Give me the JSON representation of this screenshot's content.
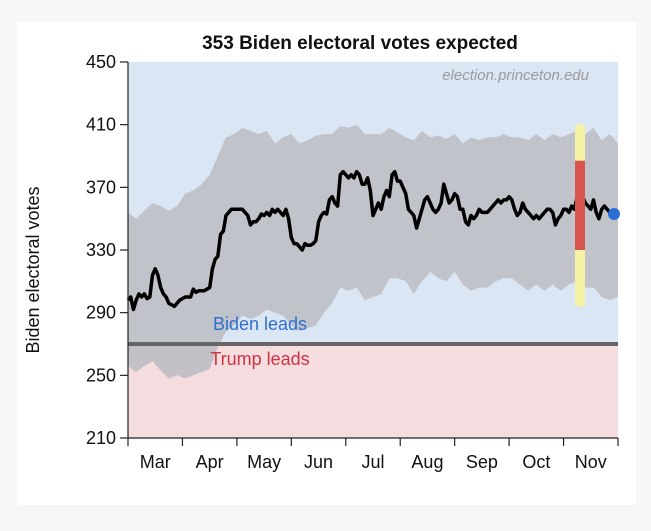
{
  "chart_data": {
    "type": "line",
    "title": "353 Biden electoral votes expected",
    "ylabel": "Biden electoral votes",
    "xlabel": "",
    "watermark": "election.princeton.edu",
    "ylim": [
      210,
      450
    ],
    "yticks": [
      210,
      250,
      290,
      330,
      370,
      410,
      450
    ],
    "months": [
      "Mar",
      "Apr",
      "May",
      "Jun",
      "Jul",
      "Aug",
      "Sep",
      "Oct",
      "Nov"
    ],
    "xlim_days": [
      0,
      238
    ],
    "threshold": 270,
    "regions": {
      "biden_label": "Biden leads",
      "trump_label": "Trump leads",
      "biden_color": "#dbe6f5",
      "trump_color": "#f5dcdf",
      "biden_text_color": "#2f6fcf",
      "trump_text_color": "#cf3444",
      "threshold_color": "#666666"
    },
    "series": [
      {
        "role": "median",
        "color": "#000000",
        "points": [
          [
            0,
            298
          ],
          [
            2,
            300
          ],
          [
            4,
            292
          ],
          [
            6,
            298
          ],
          [
            8,
            302
          ],
          [
            10,
            300
          ],
          [
            12,
            302
          ],
          [
            14,
            299
          ],
          [
            16,
            300
          ],
          [
            18,
            314
          ],
          [
            20,
            318
          ],
          [
            22,
            314
          ],
          [
            24,
            306
          ],
          [
            26,
            302
          ],
          [
            28,
            300
          ],
          [
            30,
            296
          ],
          [
            32,
            295
          ],
          [
            34,
            294
          ],
          [
            36,
            296
          ],
          [
            38,
            298
          ],
          [
            40,
            299
          ],
          [
            42,
            300
          ],
          [
            44,
            300
          ],
          [
            46,
            300
          ],
          [
            48,
            305
          ],
          [
            50,
            303
          ],
          [
            52,
            304
          ],
          [
            54,
            304
          ],
          [
            56,
            304
          ],
          [
            58,
            305
          ],
          [
            60,
            306
          ],
          [
            62,
            318
          ],
          [
            64,
            324
          ],
          [
            66,
            326
          ],
          [
            68,
            340
          ],
          [
            70,
            342
          ],
          [
            72,
            352
          ],
          [
            74,
            354
          ],
          [
            76,
            356
          ],
          [
            78,
            356
          ],
          [
            80,
            356
          ],
          [
            82,
            356
          ],
          [
            84,
            356
          ],
          [
            86,
            354
          ],
          [
            88,
            352
          ],
          [
            90,
            346
          ],
          [
            92,
            348
          ],
          [
            94,
            348
          ],
          [
            96,
            350
          ],
          [
            98,
            353
          ],
          [
            100,
            352
          ],
          [
            102,
            354
          ],
          [
            104,
            352
          ],
          [
            106,
            356
          ],
          [
            108,
            354
          ],
          [
            110,
            356
          ],
          [
            112,
            354
          ],
          [
            114,
            352
          ],
          [
            116,
            356
          ],
          [
            118,
            350
          ],
          [
            120,
            338
          ],
          [
            122,
            334
          ],
          [
            124,
            334
          ],
          [
            126,
            332
          ],
          [
            128,
            330
          ],
          [
            130,
            334
          ],
          [
            132,
            333
          ],
          [
            134,
            333
          ],
          [
            136,
            334
          ],
          [
            138,
            336
          ],
          [
            140,
            348
          ],
          [
            142,
            352
          ],
          [
            144,
            354
          ],
          [
            146,
            353
          ],
          [
            148,
            362
          ],
          [
            150,
            364
          ],
          [
            152,
            360
          ],
          [
            154,
            358
          ],
          [
            156,
            378
          ],
          [
            158,
            380
          ],
          [
            160,
            378
          ],
          [
            162,
            376
          ],
          [
            164,
            378
          ],
          [
            166,
            376
          ],
          [
            168,
            380
          ],
          [
            170,
            378
          ],
          [
            172,
            372
          ],
          [
            174,
            372
          ],
          [
            176,
            376
          ],
          [
            178,
            368
          ],
          [
            180,
            352
          ],
          [
            182,
            356
          ],
          [
            184,
            360
          ],
          [
            186,
            356
          ],
          [
            188,
            364
          ],
          [
            190,
            368
          ],
          [
            192,
            364
          ],
          [
            194,
            378
          ],
          [
            196,
            380
          ],
          [
            198,
            374
          ],
          [
            200,
            374
          ],
          [
            202,
            370
          ],
          [
            204,
            366
          ],
          [
            206,
            356
          ],
          [
            208,
            354
          ],
          [
            210,
            352
          ],
          [
            212,
            344
          ],
          [
            214,
            350
          ],
          [
            216,
            356
          ],
          [
            218,
            362
          ],
          [
            220,
            364
          ],
          [
            222,
            360
          ],
          [
            224,
            356
          ],
          [
            226,
            354
          ],
          [
            228,
            356
          ],
          [
            230,
            360
          ],
          [
            232,
            372
          ],
          [
            234,
            366
          ],
          [
            236,
            360
          ],
          [
            238,
            362
          ],
          [
            240,
            366
          ],
          [
            242,
            364
          ],
          [
            244,
            356
          ],
          [
            246,
            356
          ],
          [
            248,
            348
          ],
          [
            250,
            346
          ],
          [
            252,
            352
          ],
          [
            254,
            350
          ],
          [
            256,
            352
          ],
          [
            258,
            356
          ],
          [
            260,
            354
          ],
          [
            262,
            354
          ],
          [
            264,
            354
          ],
          [
            266,
            356
          ],
          [
            268,
            358
          ],
          [
            270,
            360
          ],
          [
            272,
            362
          ],
          [
            274,
            360
          ],
          [
            276,
            362
          ],
          [
            278,
            362
          ],
          [
            280,
            364
          ],
          [
            282,
            362
          ],
          [
            284,
            356
          ],
          [
            286,
            352
          ],
          [
            288,
            354
          ],
          [
            290,
            360
          ],
          [
            292,
            356
          ],
          [
            294,
            354
          ],
          [
            296,
            352
          ],
          [
            298,
            350
          ],
          [
            300,
            352
          ],
          [
            302,
            350
          ],
          [
            304,
            352
          ],
          [
            306,
            354
          ],
          [
            308,
            356
          ],
          [
            310,
            356
          ],
          [
            312,
            354
          ],
          [
            314,
            346
          ],
          [
            316,
            350
          ],
          [
            318,
            352
          ],
          [
            320,
            356
          ],
          [
            322,
            356
          ],
          [
            324,
            354
          ],
          [
            326,
            358
          ],
          [
            328,
            356
          ],
          [
            330,
            364
          ],
          [
            332,
            368
          ],
          [
            334,
            364
          ],
          [
            336,
            360
          ],
          [
            338,
            358
          ],
          [
            340,
            356
          ],
          [
            342,
            362
          ],
          [
            344,
            354
          ],
          [
            346,
            350
          ],
          [
            348,
            356
          ],
          [
            350,
            358
          ],
          [
            352,
            356
          ],
          [
            354,
            354
          ],
          [
            356,
            354
          ],
          [
            358,
            352
          ],
          [
            360,
            352
          ]
        ],
        "x_units": "plot-days"
      },
      {
        "role": "band-upper",
        "color": "#bbbcc2",
        "points": [
          [
            0,
            354
          ],
          [
            6,
            350
          ],
          [
            12,
            355
          ],
          [
            18,
            360
          ],
          [
            24,
            358
          ],
          [
            30,
            355
          ],
          [
            36,
            358
          ],
          [
            42,
            366
          ],
          [
            48,
            368
          ],
          [
            54,
            372
          ],
          [
            60,
            378
          ],
          [
            66,
            390
          ],
          [
            72,
            402
          ],
          [
            78,
            404
          ],
          [
            84,
            408
          ],
          [
            90,
            406
          ],
          [
            96,
            404
          ],
          [
            102,
            406
          ],
          [
            108,
            398
          ],
          [
            114,
            402
          ],
          [
            120,
            404
          ],
          [
            126,
            398
          ],
          [
            132,
            400
          ],
          [
            138,
            403
          ],
          [
            144,
            404
          ],
          [
            150,
            404
          ],
          [
            156,
            409
          ],
          [
            162,
            408
          ],
          [
            168,
            410
          ],
          [
            174,
            404
          ],
          [
            180,
            404
          ],
          [
            186,
            404
          ],
          [
            192,
            408
          ],
          [
            198,
            405
          ],
          [
            204,
            402
          ],
          [
            210,
            400
          ],
          [
            216,
            406
          ],
          [
            222,
            402
          ],
          [
            228,
            403
          ],
          [
            234,
            401
          ],
          [
            240,
            404
          ],
          [
            246,
            398
          ],
          [
            252,
            402
          ],
          [
            258,
            400
          ],
          [
            264,
            402
          ],
          [
            270,
            402
          ],
          [
            276,
            404
          ],
          [
            282,
            402
          ],
          [
            288,
            402
          ],
          [
            294,
            400
          ],
          [
            300,
            404
          ],
          [
            306,
            400
          ],
          [
            312,
            404
          ],
          [
            318,
            402
          ],
          [
            324,
            404
          ],
          [
            330,
            406
          ],
          [
            336,
            404
          ],
          [
            342,
            408
          ],
          [
            348,
            400
          ],
          [
            354,
            404
          ],
          [
            360,
            398
          ]
        ],
        "x_units": "plot-days"
      },
      {
        "role": "band-lower",
        "color": "#bbbcc2",
        "points": [
          [
            0,
            256
          ],
          [
            6,
            252
          ],
          [
            12,
            256
          ],
          [
            18,
            259
          ],
          [
            24,
            253
          ],
          [
            30,
            248
          ],
          [
            36,
            250
          ],
          [
            42,
            248
          ],
          [
            48,
            250
          ],
          [
            54,
            252
          ],
          [
            60,
            254
          ],
          [
            66,
            268
          ],
          [
            72,
            278
          ],
          [
            78,
            282
          ],
          [
            84,
            288
          ],
          [
            90,
            286
          ],
          [
            96,
            288
          ],
          [
            102,
            292
          ],
          [
            108,
            290
          ],
          [
            114,
            288
          ],
          [
            120,
            282
          ],
          [
            126,
            278
          ],
          [
            132,
            280
          ],
          [
            138,
            282
          ],
          [
            144,
            290
          ],
          [
            150,
            296
          ],
          [
            156,
            306
          ],
          [
            162,
            304
          ],
          [
            168,
            306
          ],
          [
            174,
            298
          ],
          [
            180,
            300
          ],
          [
            186,
            302
          ],
          [
            192,
            312
          ],
          [
            198,
            312
          ],
          [
            204,
            310
          ],
          [
            210,
            302
          ],
          [
            216,
            310
          ],
          [
            222,
            316
          ],
          [
            228,
            312
          ],
          [
            234,
            310
          ],
          [
            240,
            316
          ],
          [
            246,
            308
          ],
          [
            252,
            304
          ],
          [
            258,
            306
          ],
          [
            264,
            306
          ],
          [
            270,
            310
          ],
          [
            276,
            312
          ],
          [
            282,
            312
          ],
          [
            288,
            308
          ],
          [
            294,
            304
          ],
          [
            300,
            308
          ],
          [
            306,
            304
          ],
          [
            312,
            308
          ],
          [
            318,
            304
          ],
          [
            324,
            308
          ],
          [
            330,
            310
          ],
          [
            336,
            306
          ],
          [
            342,
            306
          ],
          [
            348,
            300
          ],
          [
            354,
            298
          ],
          [
            360,
            300
          ]
        ],
        "x_units": "plot-days"
      }
    ],
    "current_point": {
      "value": 353,
      "color": "#2b6fd6"
    },
    "forecast_bars": {
      "outer": {
        "low": 294,
        "high": 410,
        "color": "#f5f2a5"
      },
      "inner": {
        "low": 330,
        "high": 387,
        "color": "#d9534f"
      }
    },
    "plot_colors": {
      "band": "#bbbcc2",
      "line": "#000000",
      "axis": "#222222"
    }
  }
}
